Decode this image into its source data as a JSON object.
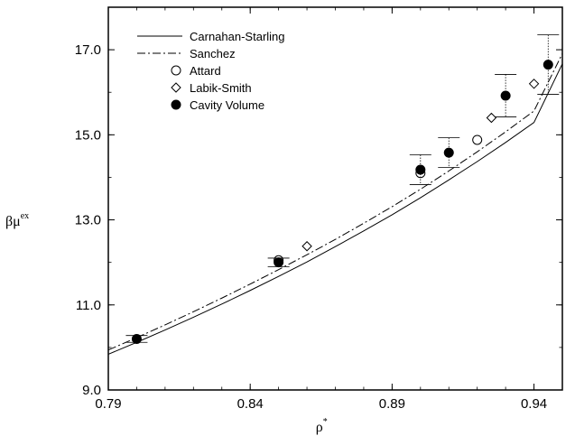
{
  "chart_data": {
    "type": "line",
    "title": "",
    "xlabel": "ρ",
    "xlabel_superscript": "*",
    "ylabel": "βμ",
    "ylabel_superscript": "ex",
    "xlim": [
      0.79,
      0.95
    ],
    "ylim": [
      9.0,
      18.0
    ],
    "xticks": [
      {
        "value": 0.79,
        "label": "0.79"
      },
      {
        "value": 0.84,
        "label": "0.84"
      },
      {
        "value": 0.89,
        "label": "0.89"
      },
      {
        "value": 0.94,
        "label": "0.94"
      }
    ],
    "yticks": [
      {
        "value": 9.0,
        "label": "9.0"
      },
      {
        "value": 11.0,
        "label": "11.0"
      },
      {
        "value": 13.0,
        "label": "13.0"
      },
      {
        "value": 15.0,
        "label": "15.0"
      },
      {
        "value": 17.0,
        "label": "17.0"
      }
    ],
    "grid": false,
    "legend_position": "top-left",
    "series": [
      {
        "name": "Carnahan-Starling",
        "kind": "line",
        "style": "solid",
        "color": "#000000",
        "x": [
          0.79,
          0.8,
          0.81,
          0.82,
          0.83,
          0.84,
          0.85,
          0.86,
          0.87,
          0.88,
          0.89,
          0.9,
          0.91,
          0.92,
          0.93,
          0.94,
          0.95
        ],
        "y": [
          9.84,
          10.12,
          10.41,
          10.71,
          11.02,
          11.34,
          11.67,
          12.01,
          12.37,
          12.74,
          13.12,
          13.52,
          13.94,
          14.37,
          14.82,
          15.29,
          16.67
        ]
      },
      {
        "name": "Sanchez",
        "kind": "line",
        "style": "dashdot",
        "color": "#000000",
        "x": [
          0.79,
          0.8,
          0.81,
          0.82,
          0.83,
          0.84,
          0.85,
          0.86,
          0.87,
          0.88,
          0.89,
          0.9,
          0.91,
          0.92,
          0.93,
          0.94,
          0.95
        ],
        "y": [
          9.94,
          10.23,
          10.53,
          10.84,
          11.16,
          11.49,
          11.83,
          12.18,
          12.54,
          12.92,
          13.31,
          13.72,
          14.15,
          14.6,
          15.07,
          15.56,
          16.91
        ]
      },
      {
        "name": "Attard",
        "kind": "marker",
        "marker": "open-circle",
        "x": [
          0.85,
          0.9,
          0.92
        ],
        "y": [
          12.05,
          14.1,
          14.88
        ]
      },
      {
        "name": "Labik-Smith",
        "kind": "marker",
        "marker": "open-diamond",
        "x": [
          0.86,
          0.925,
          0.94
        ],
        "y": [
          12.38,
          15.4,
          16.2
        ]
      },
      {
        "name": "Cavity Volume",
        "kind": "marker",
        "marker": "filled-circle",
        "x": [
          0.8,
          0.85,
          0.9,
          0.91,
          0.93,
          0.945
        ],
        "y": [
          10.2,
          12.0,
          14.18,
          14.58,
          15.92,
          16.65
        ],
        "y_err": [
          0.08,
          0.1,
          0.35,
          0.35,
          0.5,
          0.7
        ]
      }
    ]
  }
}
